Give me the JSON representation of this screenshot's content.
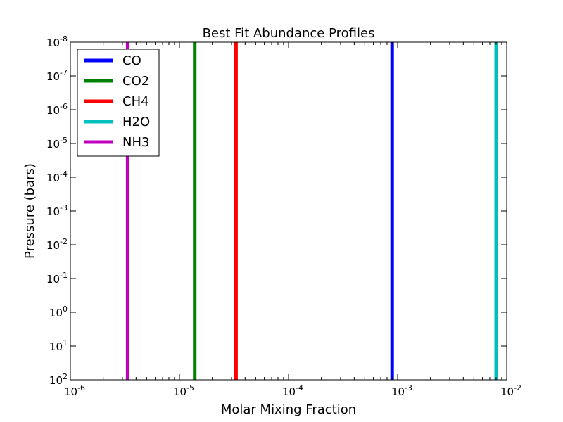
{
  "chart_data": {
    "type": "line",
    "title": "Best Fit Abundance Profiles",
    "xlabel": "Molar Mixing Fraction",
    "ylabel": "Pressure (bars)",
    "x_scale": "log",
    "y_scale": "log",
    "y_inverted": true,
    "xlim": [
      1e-06,
      0.01
    ],
    "ylim": [
      1e-08,
      100.0
    ],
    "x_ticks": [
      {
        "value": 1e-06,
        "base": "10",
        "exp": "-6"
      },
      {
        "value": 1e-05,
        "base": "10",
        "exp": "-5"
      },
      {
        "value": 0.0001,
        "base": "10",
        "exp": "-4"
      },
      {
        "value": 0.001,
        "base": "10",
        "exp": "-3"
      },
      {
        "value": 0.01,
        "base": "10",
        "exp": "-2"
      }
    ],
    "y_ticks": [
      {
        "value": 1e-08,
        "base": "10",
        "exp": "-8"
      },
      {
        "value": 1e-07,
        "base": "10",
        "exp": "-7"
      },
      {
        "value": 1e-06,
        "base": "10",
        "exp": "-6"
      },
      {
        "value": 1e-05,
        "base": "10",
        "exp": "-5"
      },
      {
        "value": 0.0001,
        "base": "10",
        "exp": "-4"
      },
      {
        "value": 0.001,
        "base": "10",
        "exp": "-3"
      },
      {
        "value": 0.01,
        "base": "10",
        "exp": "-2"
      },
      {
        "value": 0.1,
        "base": "10",
        "exp": "-1"
      },
      {
        "value": 1.0,
        "base": "10",
        "exp": "0"
      },
      {
        "value": 10.0,
        "base": "10",
        "exp": "1"
      },
      {
        "value": 100.0,
        "base": "10",
        "exp": "2"
      }
    ],
    "grid": false,
    "legend_position": "top-left",
    "series": [
      {
        "name": "CO",
        "color": "#0000ff",
        "x": [
          0.00089,
          0.00089
        ],
        "y": [
          1e-08,
          100.0
        ]
      },
      {
        "name": "CO2",
        "color": "#008000",
        "x": [
          1.38e-05,
          1.38e-05
        ],
        "y": [
          1e-08,
          100.0
        ]
      },
      {
        "name": "CH4",
        "color": "#ff0000",
        "x": [
          3.3e-05,
          3.3e-05
        ],
        "y": [
          1e-08,
          100.0
        ]
      },
      {
        "name": "H2O",
        "color": "#00bfbf",
        "x": [
          0.008,
          0.008
        ],
        "y": [
          1e-08,
          100.0
        ]
      },
      {
        "name": "NH3",
        "color": "#bf00bf",
        "x": [
          3.35e-06,
          3.35e-06
        ],
        "y": [
          1e-08,
          100.0
        ]
      }
    ]
  }
}
